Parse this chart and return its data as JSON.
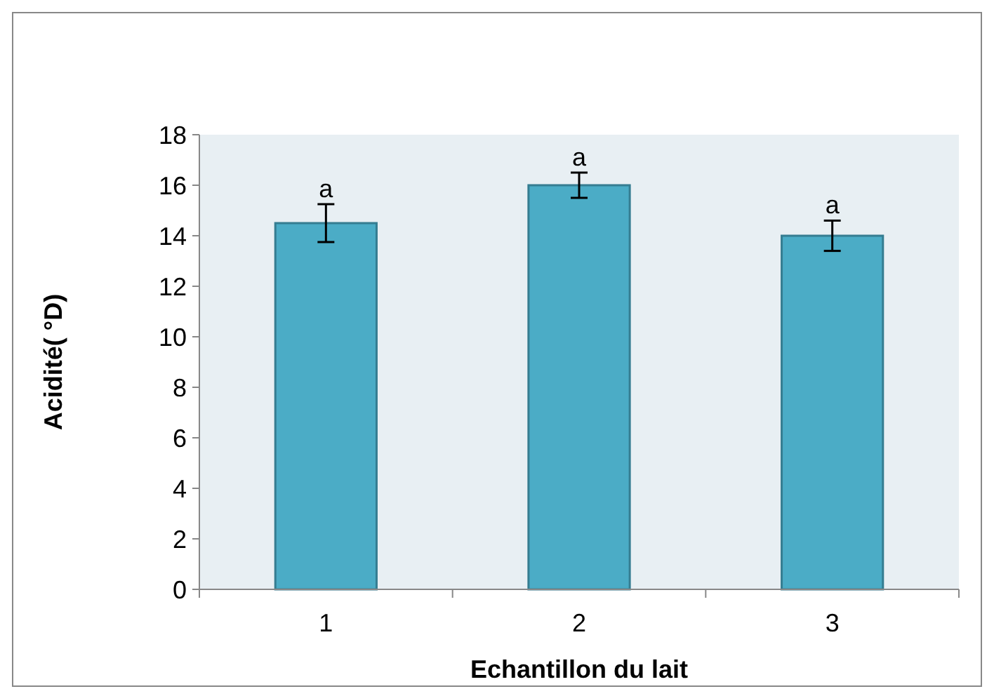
{
  "chart_data": {
    "type": "bar",
    "xlabel": "Echantillon du lait",
    "ylabel": "Acidité( °D)",
    "categories": [
      "1",
      "2",
      "3"
    ],
    "values": [
      14.5,
      16,
      14
    ],
    "errors": [
      0.75,
      0.5,
      0.6
    ],
    "color": "#4bacc6",
    "ylim": [
      0,
      18
    ],
    "yticks": [
      0,
      2,
      4,
      6,
      8,
      10,
      12,
      14,
      16,
      18
    ],
    "annotations": [
      {
        "text": "a",
        "x": "1",
        "y": 15.25
      },
      {
        "text": "a",
        "x": "2",
        "y": 16.5
      },
      {
        "text": "a",
        "x": "3",
        "y": 14.6
      }
    ]
  }
}
